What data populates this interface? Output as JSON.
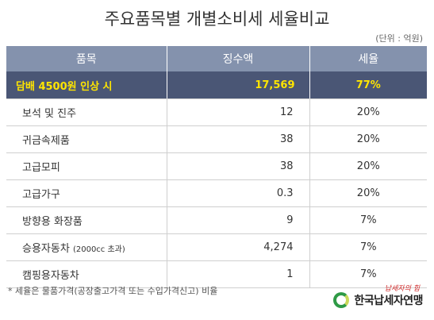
{
  "title": "주요품목별 개별소비세 세율비교",
  "unit": "(단위 : 억원)",
  "table": {
    "headers": [
      "품목",
      "징수액",
      "세율"
    ],
    "highlight": {
      "item": "담배 4500원 인상 시",
      "amount": "17,569",
      "rate": "77%"
    },
    "rows": [
      {
        "item": "보석 및 진주",
        "item_note": "",
        "amount": "12",
        "rate": "20%"
      },
      {
        "item": "귀금속제품",
        "item_note": "",
        "amount": "38",
        "rate": "20%"
      },
      {
        "item": "고급모피",
        "item_note": "",
        "amount": "38",
        "rate": "20%"
      },
      {
        "item": "고급가구",
        "item_note": "",
        "amount": "0.3",
        "rate": "20%"
      },
      {
        "item": "방향용 화장품",
        "item_note": "",
        "amount": "9",
        "rate": "7%"
      },
      {
        "item": "승용자동차",
        "item_note": "(2000cc 초과)",
        "amount": "4,274",
        "rate": "7%"
      },
      {
        "item": "캠핑용자동차",
        "item_note": "",
        "amount": "1",
        "rate": "7%"
      }
    ]
  },
  "footnote": "* 세율은 물품가격(공장출고가격 또는 수입가격신고) 비율",
  "logo": {
    "slogan": "납세자의 힘",
    "name": "한국납세자연맹",
    "icon": "circle-logo-icon"
  }
}
